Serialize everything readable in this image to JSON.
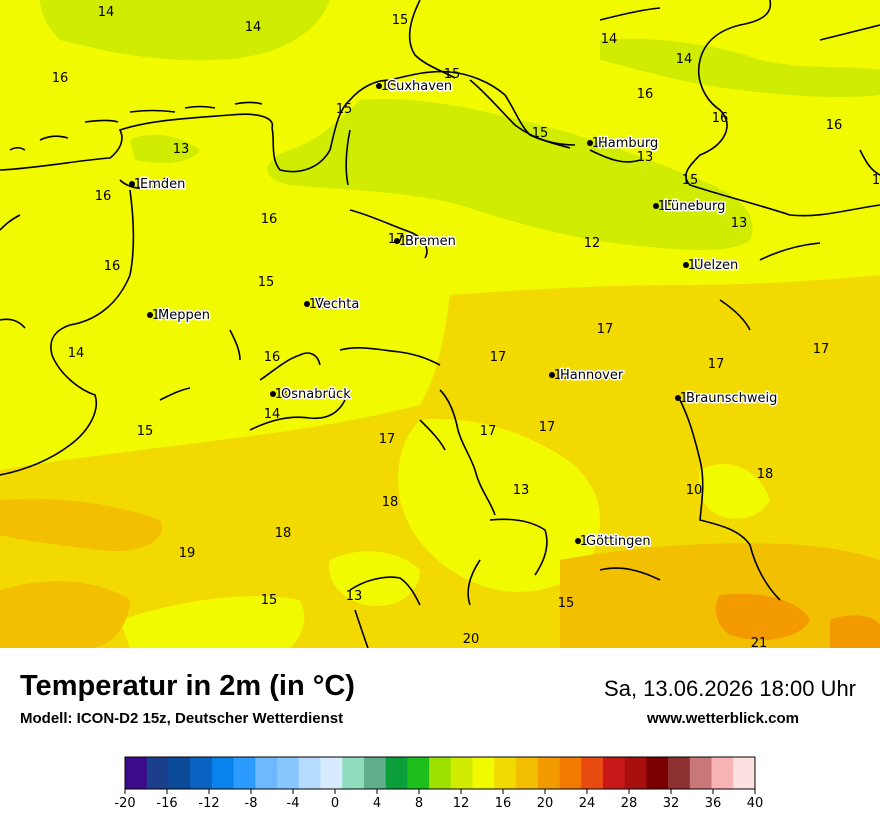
{
  "header": {
    "title": "Temperatur in 2m (in °C)",
    "model": "Modell: ICON-D2 15z, Deutscher Wetterdienst",
    "datetime": "Sa, 13.06.2026 18:00 Uhr",
    "website": "www.wetterblick.com"
  },
  "map": {
    "variable": "2m temperature",
    "unit": "°C",
    "cities": [
      {
        "name": "Cuxhaven",
        "value": "15"
      },
      {
        "name": "Hamburg",
        "value": "15"
      },
      {
        "name": "Emden",
        "value": "16"
      },
      {
        "name": "Bremen",
        "value": "17"
      },
      {
        "name": "Lüneburg",
        "value": "15"
      },
      {
        "name": "Uelzen",
        "value": "12"
      },
      {
        "name": "Vechta",
        "value": "15"
      },
      {
        "name": "Meppen",
        "value": "15"
      },
      {
        "name": "Hannover",
        "value": "17"
      },
      {
        "name": "Osnabrück",
        "value": "14"
      },
      {
        "name": "Braunschweig",
        "value": "17"
      },
      {
        "name": "Göttingen",
        "value": "13"
      }
    ],
    "values": [
      "14",
      "14",
      "15",
      "14",
      "14",
      "15",
      "16",
      "16",
      "16",
      "15",
      "13",
      "15",
      "13",
      "16",
      "15",
      "16",
      "1",
      "16",
      "17",
      "12",
      "13",
      "16",
      "15",
      "14",
      "17",
      "17",
      "17",
      "17",
      "16",
      "14",
      "15",
      "17",
      "17",
      "17",
      "13",
      "10",
      "18",
      "18",
      "18",
      "19",
      "15",
      "13",
      "15",
      "20",
      "21"
    ]
  },
  "legend": {
    "ticks": [
      "-20",
      "-16",
      "-12",
      "-8",
      "-4",
      "0",
      "4",
      "8",
      "12",
      "16",
      "20",
      "24",
      "28",
      "32",
      "36",
      "40"
    ],
    "colors": [
      "#3c0a8c",
      "#1b3f8b",
      "#0a4b9a",
      "#0a63c3",
      "#0a82ec",
      "#2b9bff",
      "#6db8ff",
      "#88c6ff",
      "#b6dcff",
      "#d7ebff",
      "#8fdcbf",
      "#5fae8c",
      "#0a9f3a",
      "#1dbf1d",
      "#9ee000",
      "#d0ec00",
      "#f2fa00",
      "#f2da00",
      "#f2c000",
      "#f29a00",
      "#f27a00",
      "#e84a10",
      "#c81818",
      "#a81010",
      "#7a0000",
      "#8c3030",
      "#c87878",
      "#f8b4b4",
      "#fde0e0"
    ]
  }
}
